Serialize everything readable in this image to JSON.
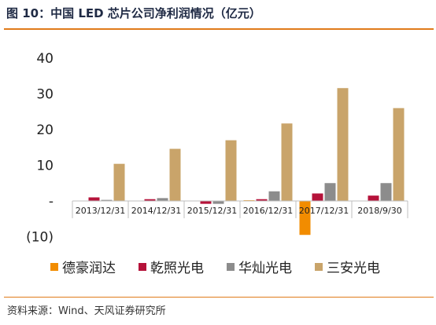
{
  "title": "图 10：中国 LED 芯片公司净利润情况（亿元）",
  "source": "资料来源：Wind、天风证券研究所",
  "colors": {
    "accent_rule": "#e07b1a",
    "title_text": "#1f2a44"
  },
  "chart_data": {
    "type": "bar",
    "categories": [
      "2013/12/31",
      "2014/12/31",
      "2015/12/31",
      "2016/12/31",
      "2017/12/31",
      "2018/9/30"
    ],
    "series": [
      {
        "name": "德豪润达",
        "color": "#f28c00",
        "values": [
          0.1,
          0.1,
          0.1,
          0.2,
          -9.5,
          0.0
        ]
      },
      {
        "name": "乾照光电",
        "color": "#b5123a",
        "values": [
          1.0,
          0.5,
          -0.8,
          0.5,
          2.1,
          1.5
        ]
      },
      {
        "name": "华灿光电",
        "color": "#8c8c8c",
        "values": [
          0.3,
          0.8,
          -0.8,
          2.7,
          5.0,
          5.0
        ]
      },
      {
        "name": "三安光电",
        "color": "#c9a46a",
        "values": [
          10.4,
          14.6,
          17.0,
          21.7,
          31.6,
          26.0
        ]
      }
    ],
    "yticks": [
      "40",
      "30",
      "20",
      "10",
      "-",
      "(10)"
    ],
    "ytick_values": [
      40,
      30,
      20,
      10,
      0,
      -10
    ],
    "ylim": [
      -10,
      40
    ],
    "grid": false,
    "legend": "bottom"
  }
}
